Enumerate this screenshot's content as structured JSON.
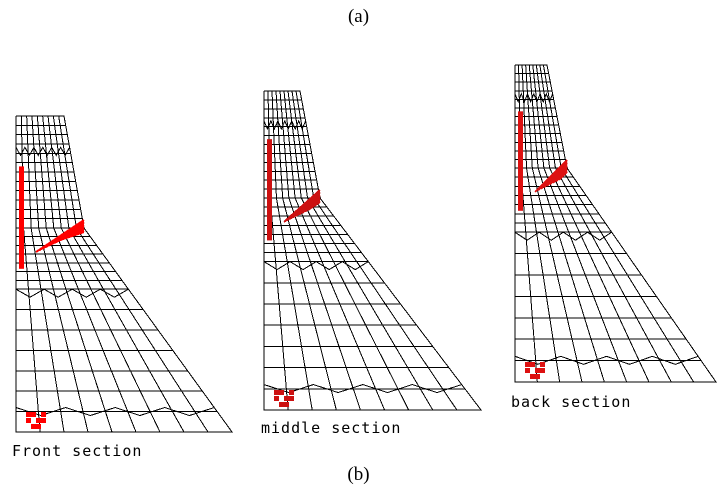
{
  "figure": {
    "top_label": "(a)",
    "bottom_label": "(b)"
  },
  "sections": [
    {
      "id": "front",
      "caption": "Front section",
      "crack_color": "#ff0000"
    },
    {
      "id": "middle",
      "caption": "middle section",
      "crack_color": "#cc1111"
    },
    {
      "id": "back",
      "caption": "back section",
      "crack_color": "#dd1111"
    }
  ]
}
